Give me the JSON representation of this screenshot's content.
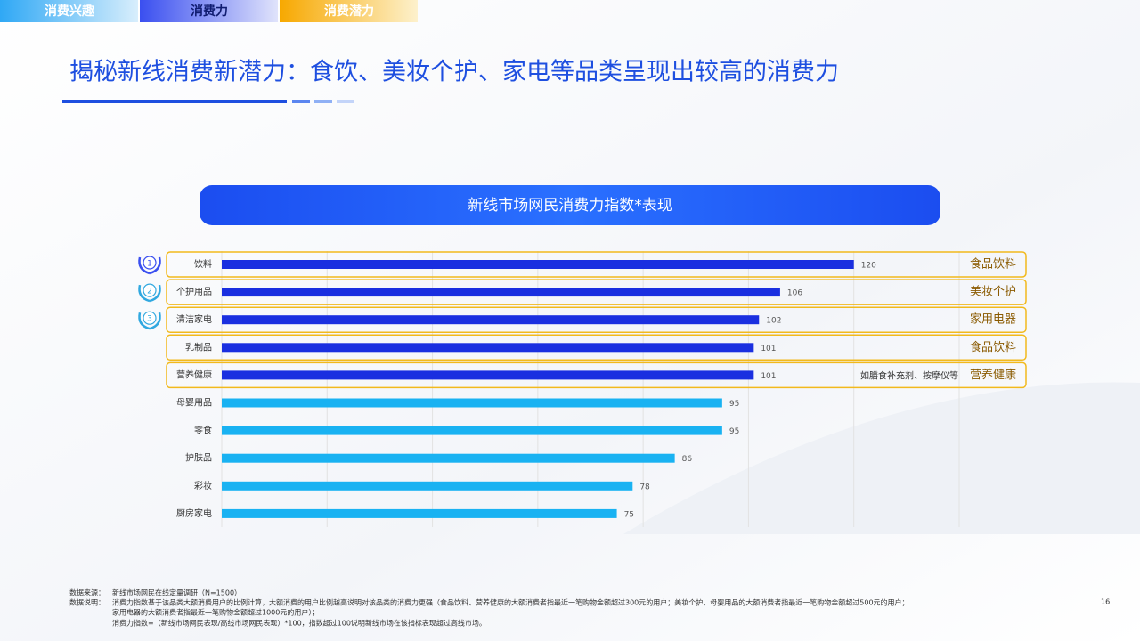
{
  "tabs": [
    "消费兴趣",
    "消费力",
    "消费潜力"
  ],
  "title": "揭秘新线消费新潜力：食饮、美妆个护、家电等品类呈现出较高的消费力",
  "chart_data": {
    "type": "bar",
    "orientation": "horizontal",
    "title": "新线市场网民消费力指数*表现",
    "categories": [
      "饮料",
      "个护用品",
      "清洁家电",
      "乳制品",
      "营养健康",
      "母婴用品",
      "零食",
      "护肤品",
      "彩妆",
      "厨房家电"
    ],
    "values": [
      120,
      106,
      102,
      101,
      101,
      95,
      95,
      86,
      78,
      75
    ],
    "colors": [
      "#1a2fe0",
      "#1a2fe0",
      "#1a2fe0",
      "#1a2fe0",
      "#1a2fe0",
      "#19b2f2",
      "#19b2f2",
      "#19b2f2",
      "#19b2f2",
      "#19b2f2"
    ],
    "ranks": [
      1,
      2,
      3,
      null,
      null,
      null,
      null,
      null,
      null,
      null
    ],
    "groups": [
      "食品饮料",
      "美妆个护",
      "家用电器",
      "食品饮料",
      "营养健康",
      null,
      null,
      null,
      null,
      null
    ],
    "notes": [
      null,
      null,
      null,
      null,
      "如膳食补充剂、按摩仪等",
      null,
      null,
      null,
      null,
      null
    ],
    "xlim": [
      0,
      140
    ],
    "xticks": [
      0,
      20,
      40,
      60,
      80,
      100,
      120,
      140
    ],
    "grid": true
  },
  "footnotes": {
    "source_label": "数据来源：",
    "source": "新线市场网民在线定量调研（N=1500）",
    "notes_label": "数据说明：",
    "notes": [
      "消费力指数基于该品类大额消费用户的比例计算，大额消费的用户比例越高说明对该品类的消费力更强（食品饮料、营养健康的大额消费者指最近一笔购物金额超过300元的用户；美妆个护、母婴用品的大额消费者指最近一笔购物金额超过500元的用户；",
      "家用电器的大额消费者指最近一笔购物金额超过1000元的用户）；",
      "消费力指数=（新线市场网民表现/高线市场网民表现）*100，指数超过100说明新线市场在该指标表现超过高线市场。"
    ]
  },
  "page_number": "16"
}
